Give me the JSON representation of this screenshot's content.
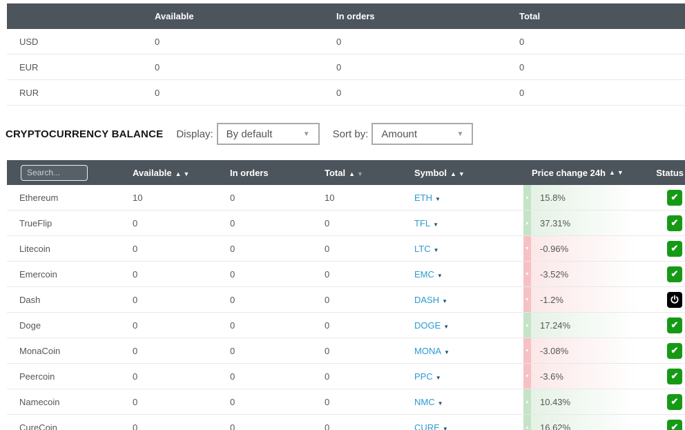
{
  "fiat_table": {
    "headers": {
      "currency": "",
      "available": "Available",
      "in_orders": "In orders",
      "total": "Total"
    },
    "rows": [
      {
        "currency": "USD",
        "available": "0",
        "in_orders": "0",
        "total": "0"
      },
      {
        "currency": "EUR",
        "available": "0",
        "in_orders": "0",
        "total": "0"
      },
      {
        "currency": "RUR",
        "available": "0",
        "in_orders": "0",
        "total": "0"
      }
    ]
  },
  "controls": {
    "title": "CRYPTOCURRENCY BALANCE",
    "display_label": "Display:",
    "display_value": "By default",
    "sort_label": "Sort by:",
    "sort_value": "Amount"
  },
  "crypto_table": {
    "search_placeholder": "Search...",
    "headers": {
      "available": "Available",
      "in_orders": "In orders",
      "total": "Total",
      "symbol": "Symbol",
      "price_change": "Price change 24h",
      "status": "Status"
    },
    "rows": [
      {
        "name": "Ethereum",
        "available": "10",
        "in_orders": "0",
        "total": "10",
        "symbol": "ETH",
        "price_change": "15.8%",
        "direction": "up",
        "status": "enabled"
      },
      {
        "name": "TrueFlip",
        "available": "0",
        "in_orders": "0",
        "total": "0",
        "symbol": "TFL",
        "price_change": "37.31%",
        "direction": "up",
        "status": "enabled"
      },
      {
        "name": "Litecoin",
        "available": "0",
        "in_orders": "0",
        "total": "0",
        "symbol": "LTC",
        "price_change": "-0.96%",
        "direction": "down",
        "status": "enabled"
      },
      {
        "name": "Emercoin",
        "available": "0",
        "in_orders": "0",
        "total": "0",
        "symbol": "EMC",
        "price_change": "-3.52%",
        "direction": "down",
        "status": "enabled"
      },
      {
        "name": "Dash",
        "available": "0",
        "in_orders": "0",
        "total": "0",
        "symbol": "DASH",
        "price_change": "-1.2%",
        "direction": "down",
        "status": "disabled"
      },
      {
        "name": "Doge",
        "available": "0",
        "in_orders": "0",
        "total": "0",
        "symbol": "DOGE",
        "price_change": "17.24%",
        "direction": "up",
        "status": "enabled"
      },
      {
        "name": "MonaCoin",
        "available": "0",
        "in_orders": "0",
        "total": "0",
        "symbol": "MONA",
        "price_change": "-3.08%",
        "direction": "down",
        "status": "enabled"
      },
      {
        "name": "Peercoin",
        "available": "0",
        "in_orders": "0",
        "total": "0",
        "symbol": "PPC",
        "price_change": "-3.6%",
        "direction": "down",
        "status": "enabled"
      },
      {
        "name": "Namecoin",
        "available": "0",
        "in_orders": "0",
        "total": "0",
        "symbol": "NMC",
        "price_change": "10.43%",
        "direction": "up",
        "status": "enabled"
      },
      {
        "name": "CureCoin",
        "available": "0",
        "in_orders": "0",
        "total": "0",
        "symbol": "CURE",
        "price_change": "16.62%",
        "direction": "up",
        "status": "enabled"
      }
    ]
  },
  "colors": {
    "header_bg": "#4c545c",
    "link_blue": "#2a9ad2",
    "positive_strip": "#c5e3c6",
    "negative_strip": "#f5c1c5",
    "positive_fill": "#e4f1e4",
    "negative_fill": "#fbe6e7",
    "status_enabled": "#169a16",
    "status_disabled": "#000000"
  }
}
